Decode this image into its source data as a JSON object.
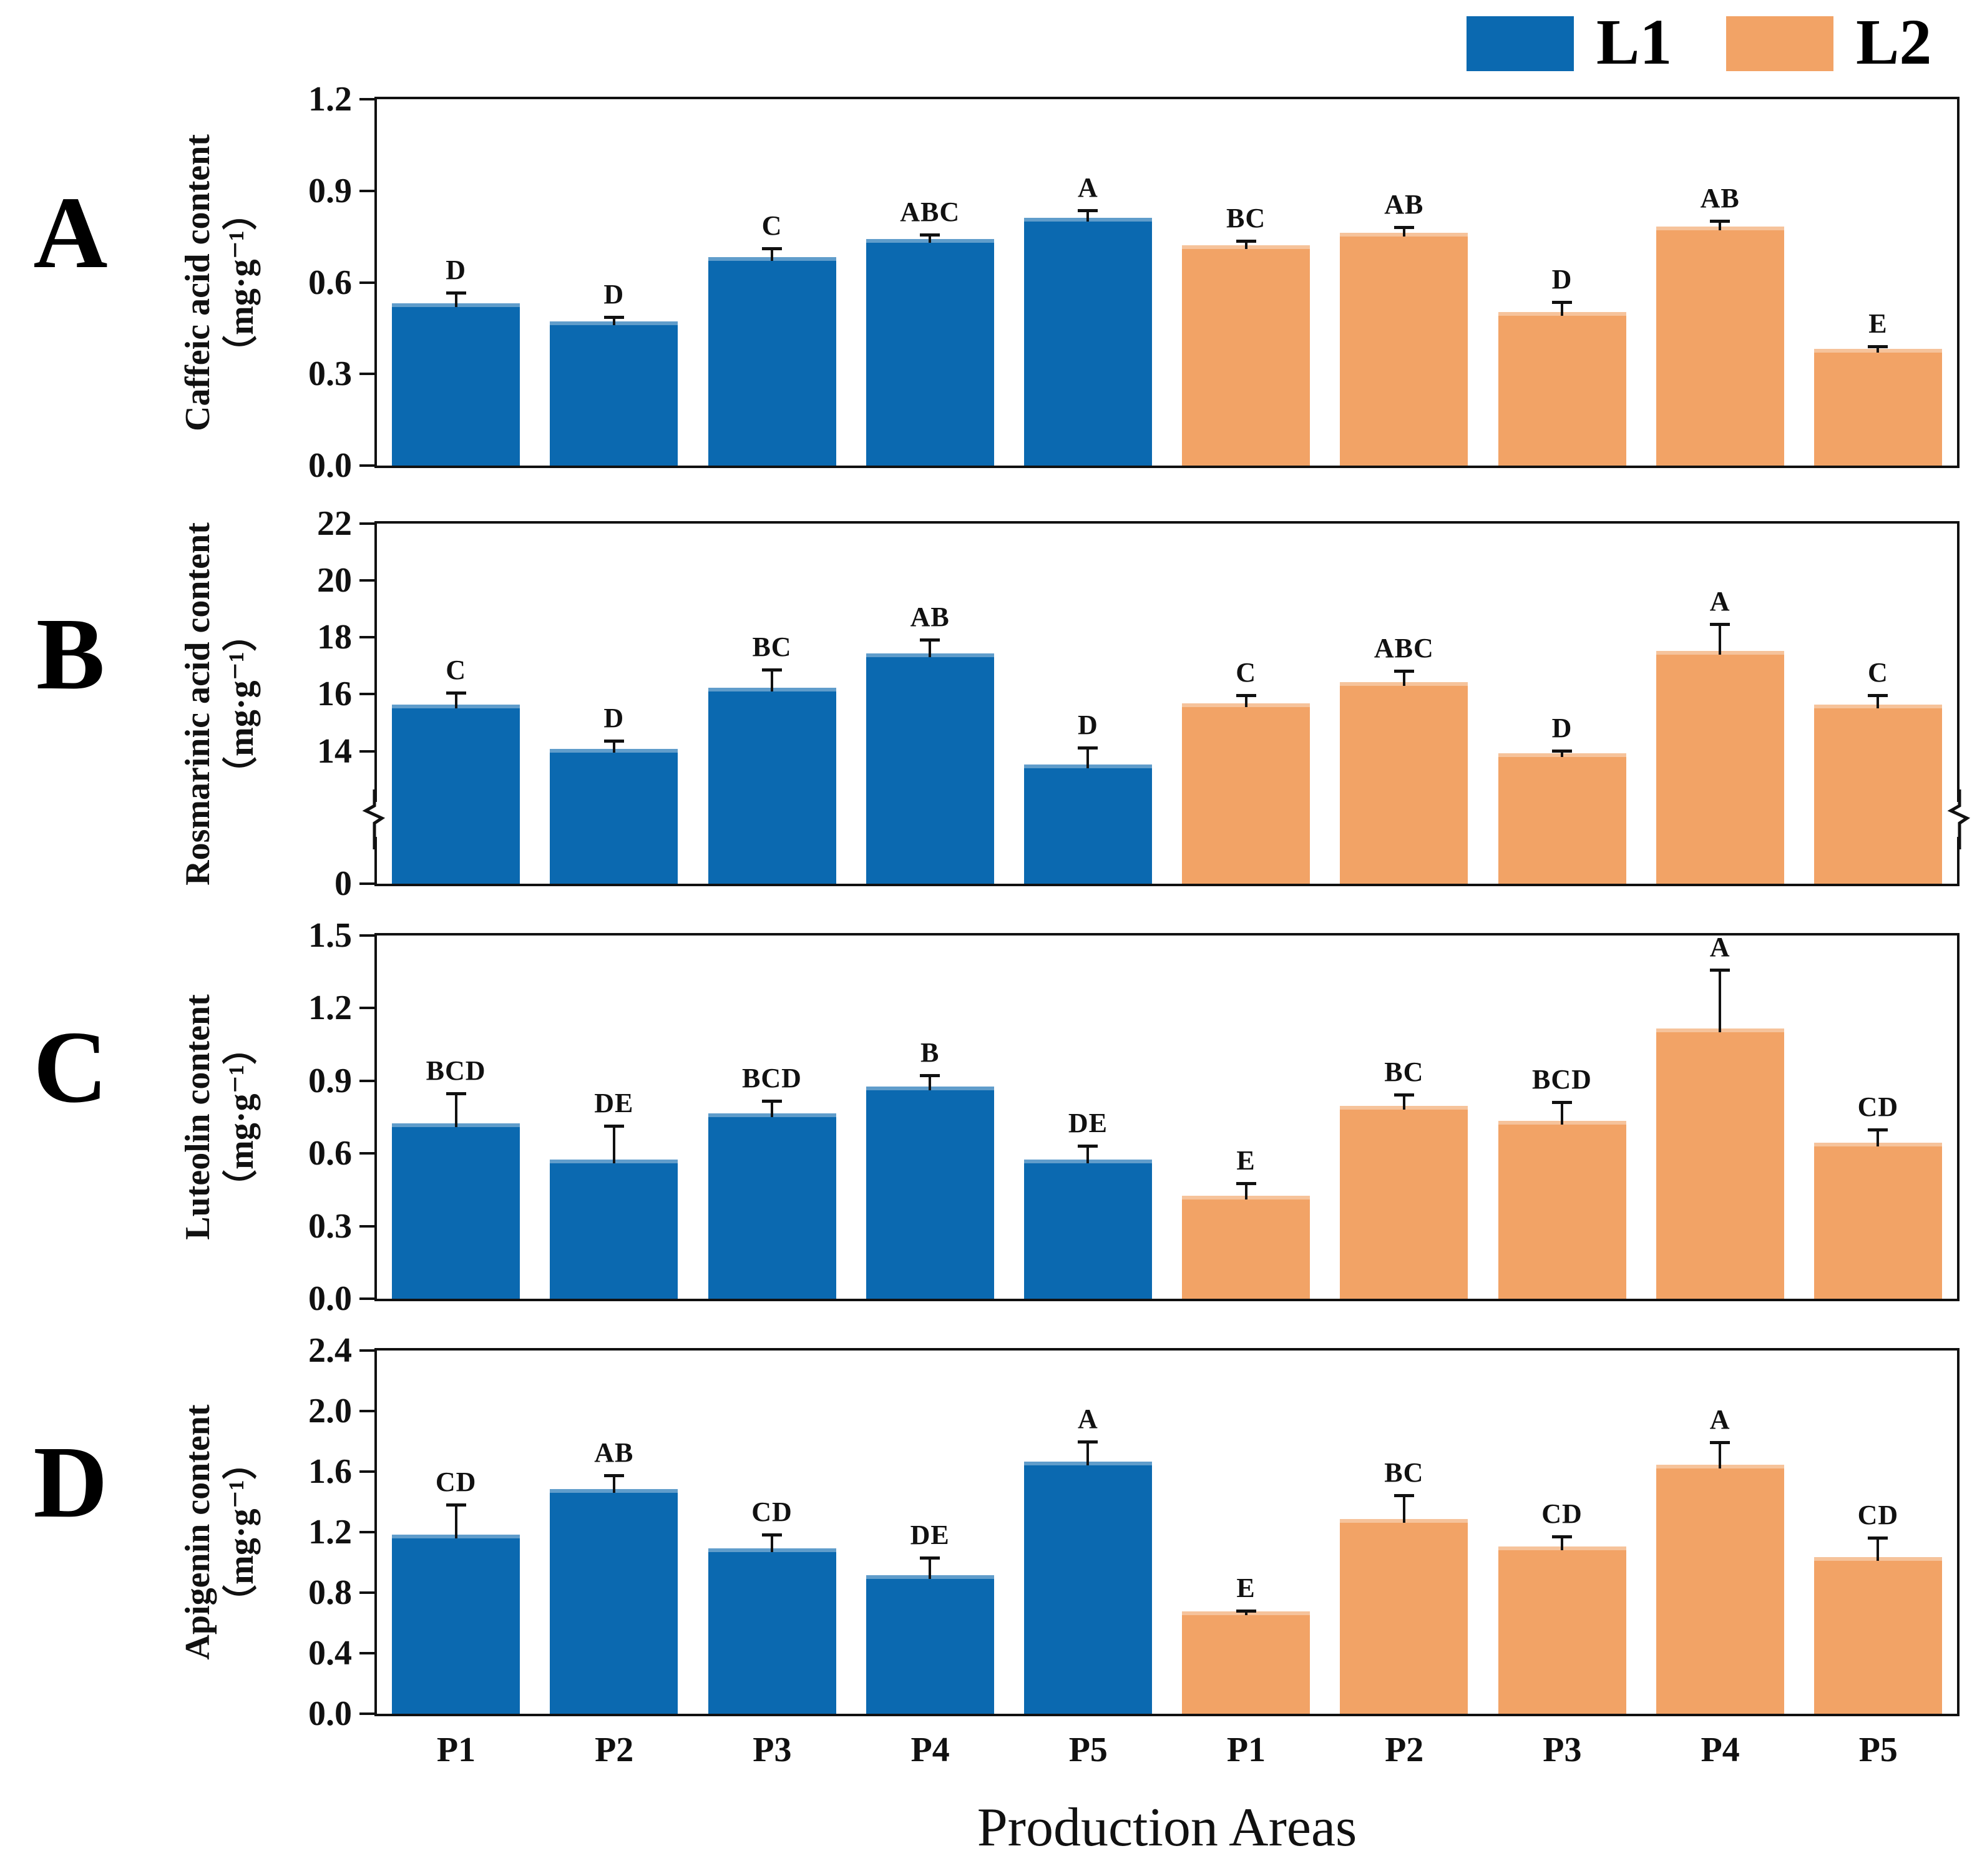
{
  "legend": {
    "items": [
      {
        "label": "L1",
        "color": "#0b69b0"
      },
      {
        "label": "L2",
        "color": "#f2a366"
      }
    ]
  },
  "xaxis": {
    "title": "Production Areas",
    "categories": [
      "P1",
      "P2",
      "P3",
      "P4",
      "P5",
      "P1",
      "P2",
      "P3",
      "P4",
      "P5"
    ]
  },
  "chart_data": [
    {
      "type": "bar",
      "panel": "A",
      "title": "Caffeic acid content",
      "ylabel": "Caffeic acid content",
      "unit": "（mg·g⁻¹）",
      "ylim": [
        0,
        1.2
      ],
      "ytick_values": [
        0,
        0.3,
        0.6,
        0.9,
        1.2
      ],
      "ytick_labels": [
        "0.0",
        "0.3",
        "0.6",
        "0.9",
        "1.2"
      ],
      "grid": false,
      "series": [
        {
          "name": "L1",
          "values": [
            0.52,
            0.46,
            0.67,
            0.73,
            0.8
          ],
          "errors": [
            0.04,
            0.02,
            0.035,
            0.02,
            0.03
          ],
          "letters": [
            "D",
            "D",
            "C",
            "ABC",
            "A"
          ]
        },
        {
          "name": "L2",
          "values": [
            0.71,
            0.75,
            0.49,
            0.77,
            0.37
          ],
          "errors": [
            0.02,
            0.025,
            0.04,
            0.025,
            0.015
          ],
          "letters": [
            "BC",
            "AB",
            "D",
            "AB",
            "E"
          ]
        }
      ]
    },
    {
      "type": "bar",
      "panel": "B",
      "title": "Rosmarinic acid content",
      "ylabel": "Rosmarinic acid content",
      "unit": "（mg·g⁻¹）",
      "ylim": [
        0,
        22
      ],
      "broken_axis": {
        "hidden_range": [
          0,
          13
        ]
      },
      "ytick_values": [
        0,
        14,
        16,
        18,
        20,
        22
      ],
      "ytick_labels": [
        "0",
        "14",
        "16",
        "18",
        "20",
        "22"
      ],
      "grid": false,
      "series": [
        {
          "name": "L1",
          "values": [
            15.5,
            13.95,
            16.1,
            17.3,
            13.4
          ],
          "errors": [
            0.5,
            0.35,
            0.7,
            0.55,
            0.65
          ],
          "letters": [
            "C",
            "D",
            "BC",
            "AB",
            "D"
          ]
        },
        {
          "name": "L2",
          "values": [
            15.55,
            16.3,
            13.8,
            17.4,
            15.5
          ],
          "errors": [
            0.35,
            0.45,
            0.15,
            1.0,
            0.4
          ],
          "letters": [
            "C",
            "ABC",
            "D",
            "A",
            "C"
          ]
        }
      ]
    },
    {
      "type": "bar",
      "panel": "C",
      "title": "Luteolin content",
      "ylabel": "Luteolin content",
      "unit": "（mg·g⁻¹）",
      "ylim": [
        0,
        1.5
      ],
      "ytick_values": [
        0,
        0.3,
        0.6,
        0.9,
        1.2,
        1.5
      ],
      "ytick_labels": [
        "0.0",
        "0.3",
        "0.6",
        "0.9",
        "1.2",
        "1.5"
      ],
      "grid": false,
      "series": [
        {
          "name": "L1",
          "values": [
            0.71,
            0.56,
            0.75,
            0.86,
            0.56
          ],
          "errors": [
            0.13,
            0.145,
            0.06,
            0.055,
            0.065
          ],
          "letters": [
            "BCD",
            "DE",
            "BCD",
            "B",
            "DE"
          ]
        },
        {
          "name": "L2",
          "values": [
            0.41,
            0.78,
            0.72,
            1.1,
            0.63
          ],
          "errors": [
            0.06,
            0.055,
            0.085,
            0.25,
            0.06
          ],
          "letters": [
            "E",
            "BC",
            "BCD",
            "A",
            "CD"
          ]
        }
      ]
    },
    {
      "type": "bar",
      "panel": "D",
      "title": "Apigenin content",
      "ylabel": "Apigenin content",
      "unit": "（mg·g⁻¹）",
      "ylim": [
        0,
        2.4
      ],
      "ytick_values": [
        0,
        0.4,
        0.8,
        1.2,
        1.6,
        2.0,
        2.4
      ],
      "ytick_labels": [
        "0.0",
        "0.4",
        "0.8",
        "1.2",
        "1.6",
        "2.0",
        "2.4"
      ],
      "grid": false,
      "series": [
        {
          "name": "L1",
          "values": [
            1.16,
            1.46,
            1.07,
            0.89,
            1.64
          ],
          "errors": [
            0.21,
            0.105,
            0.1,
            0.13,
            0.145
          ],
          "letters": [
            "CD",
            "AB",
            "CD",
            "DE",
            "A"
          ]
        },
        {
          "name": "L2",
          "values": [
            0.65,
            1.26,
            1.08,
            1.62,
            1.01
          ],
          "errors": [
            0.02,
            0.17,
            0.08,
            0.16,
            0.14
          ],
          "letters": [
            "E",
            "BC",
            "CD",
            "A",
            "CD"
          ]
        }
      ]
    }
  ]
}
